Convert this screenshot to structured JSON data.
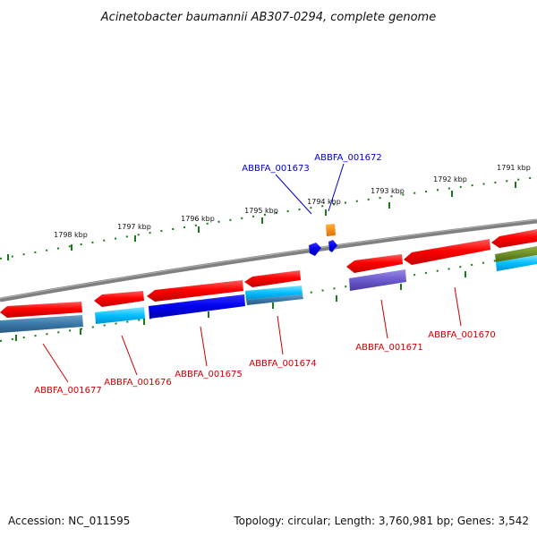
{
  "title": "Acinetobacter baumannii AB307-0294, complete genome",
  "footer": {
    "accession": "Accession: NC_011595",
    "topology": "Topology: circular; Length: 3,760,981 bp; Genes: 3,542"
  },
  "scale_labels": [
    "1798 kbp",
    "1797 kbp",
    "1796 kbp",
    "1795 kbp",
    "1794 kbp",
    "1793 kbp",
    "1792 kbp",
    "1791 kbp"
  ],
  "gene_labels": {
    "g1677": "ABBFA_001677",
    "g1676": "ABBFA_001676",
    "g1675": "ABBFA_001675",
    "g1674": "ABBFA_001674",
    "g1673": "ABBFA_001673",
    "g1672": "ABBFA_001672",
    "g1671": "ABBFA_001671",
    "g1670": "ABBFA_001670"
  },
  "colors": {
    "backbone": "#808080",
    "tick": "#1a7a1a",
    "label_red": "#cc0000",
    "label_blue": "#0000cc",
    "gene_red": "#ff0000",
    "gene_cyan": "#00bfff",
    "gene_blue": "#0000ee",
    "gene_steel": "#3a78a8",
    "gene_purple": "#6a5acd",
    "gene_orange": "#ff8c00",
    "gene_olive": "#6b8e23"
  }
}
